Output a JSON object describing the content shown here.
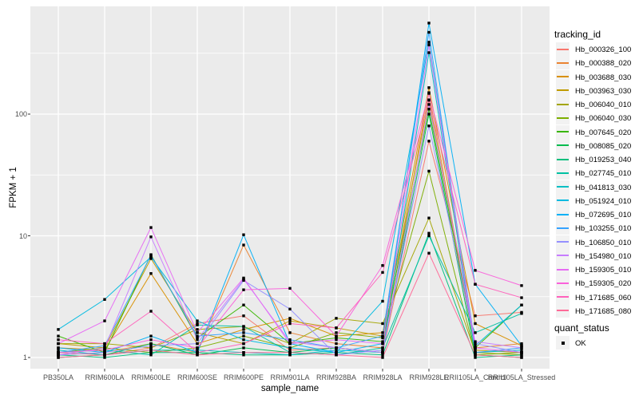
{
  "chart_data": {
    "type": "line",
    "x_scale": "categorical",
    "y_scale": "log10",
    "title": "",
    "xlabel": "sample_name",
    "ylabel": "FPKM + 1",
    "background": "#ebebeb",
    "gridline_color": "#ffffff",
    "point_marker": "black-square",
    "y_ticks": [
      {
        "value": 1,
        "label": "1"
      },
      {
        "value": 10,
        "label": "10"
      },
      {
        "value": 100,
        "label": "100"
      }
    ],
    "y_minor_gridlines": [
      3.1623,
      31.623,
      316.23
    ],
    "ylim": [
      0.85,
      770
    ],
    "categories": [
      "PB350LA",
      "RRIM600LA",
      "RRIM600LE",
      "RRIM600SE",
      "RRIM600PE",
      "RRIM901LA",
      "RRIM928BA",
      "RRIM928LA",
      "RRIM928LE",
      "RRII105LA_Control",
      "RRII105LA_Stressed"
    ],
    "series": [
      {
        "name": "Hb_000326_100",
        "color": "#F8766D",
        "values": [
          1.1,
          1.05,
          1.2,
          1.9,
          2.2,
          1.15,
          1.2,
          1.1,
          60,
          2.2,
          2.35
        ]
      },
      {
        "name": "Hb_000388_020",
        "color": "#EA8331",
        "values": [
          1.05,
          1.1,
          1.3,
          1.1,
          8.4,
          1.6,
          1.3,
          1.2,
          150,
          1.2,
          1.3
        ]
      },
      {
        "name": "Hb_003688_030",
        "color": "#D89000",
        "values": [
          1.2,
          1.15,
          4.9,
          1.3,
          1.7,
          2.1,
          1.5,
          1.6,
          165,
          1.9,
          1.25
        ]
      },
      {
        "name": "Hb_003963_030",
        "color": "#C09B00",
        "values": [
          1.3,
          1.2,
          6.5,
          1.6,
          1.3,
          2.0,
          1.75,
          1.5,
          131,
          1.15,
          1.1
        ]
      },
      {
        "name": "Hb_006040_010",
        "color": "#A3A500",
        "values": [
          1.3,
          1.3,
          1.2,
          1.7,
          1.8,
          1.3,
          2.1,
          1.9,
          14,
          1.1,
          1.05
        ]
      },
      {
        "name": "Hb_006040_030",
        "color": "#7CAE00",
        "values": [
          1.1,
          1.2,
          1.1,
          1.2,
          1.5,
          1.2,
          1.6,
          1.45,
          34,
          1.05,
          1.1
        ]
      },
      {
        "name": "Hb_007645_020",
        "color": "#39B600",
        "values": [
          1.5,
          1.1,
          7.0,
          1.45,
          2.7,
          1.3,
          1.45,
          1.35,
          110,
          1.2,
          2.7
        ]
      },
      {
        "name": "Hb_008085_020",
        "color": "#00BB4E",
        "values": [
          1.0,
          1.05,
          1.3,
          1.05,
          1.2,
          1.1,
          1.2,
          1.1,
          100,
          1.05,
          1.0
        ]
      },
      {
        "name": "Hb_019253_040",
        "color": "#00BF7D",
        "values": [
          1.05,
          1.0,
          1.1,
          1.1,
          1.05,
          1.05,
          1.1,
          1.05,
          10.5,
          1.0,
          1.05
        ]
      },
      {
        "name": "Hb_027745_010",
        "color": "#00C1A3",
        "values": [
          1.1,
          1.15,
          1.05,
          1.85,
          1.8,
          1.1,
          1.05,
          1.2,
          10,
          1.6,
          2.3
        ]
      },
      {
        "name": "Hb_041813_030",
        "color": "#00BFC4",
        "values": [
          1.15,
          1.05,
          1.15,
          1.15,
          1.1,
          1.05,
          1.15,
          1.1,
          320,
          1.1,
          1.15
        ]
      },
      {
        "name": "Hb_051924_010",
        "color": "#00BAE0",
        "values": [
          1.7,
          3.0,
          6.7,
          2.0,
          1.4,
          1.2,
          1.1,
          2.9,
          390,
          1.25,
          2.7
        ]
      },
      {
        "name": "Hb_072695_010",
        "color": "#00B0F6",
        "values": [
          1.2,
          1.1,
          1.5,
          1.1,
          10.2,
          1.3,
          1.1,
          1.3,
          560,
          4.0,
          1.25
        ]
      },
      {
        "name": "Hb_103255_010",
        "color": "#35A2FF",
        "values": [
          1.1,
          1.25,
          6.9,
          1.5,
          1.6,
          1.4,
          1.2,
          1.5,
          470,
          1.1,
          1.2
        ]
      },
      {
        "name": "Hb_106850_010",
        "color": "#9590FF",
        "values": [
          1.05,
          1.1,
          1.25,
          1.3,
          4.3,
          2.5,
          1.05,
          1.15,
          80,
          1.3,
          1.1
        ]
      },
      {
        "name": "Hb_154980_010",
        "color": "#C77CFF",
        "values": [
          1.05,
          1.2,
          9.8,
          1.4,
          4.4,
          1.35,
          1.2,
          1.1,
          120,
          1.35,
          1.2
        ]
      },
      {
        "name": "Hb_159305_010",
        "color": "#E76BF3",
        "values": [
          1.3,
          2.0,
          11.7,
          1.6,
          4.5,
          1.3,
          1.4,
          1.3,
          370,
          1.2,
          1.1
        ]
      },
      {
        "name": "Hb_159305_020",
        "color": "#FA62DB",
        "values": [
          1.1,
          1.15,
          1.4,
          1.2,
          3.6,
          3.7,
          1.5,
          5.7,
          148,
          5.2,
          3.9
        ]
      },
      {
        "name": "Hb_171685_060",
        "color": "#FF62BC",
        "values": [
          1.4,
          1.3,
          2.4,
          1.1,
          1.3,
          1.9,
          1.75,
          5.0,
          130,
          4.0,
          3.1
        ]
      },
      {
        "name": "Hb_171685_080",
        "color": "#FF6A98",
        "values": [
          1.0,
          1.05,
          1.15,
          1.05,
          1.1,
          1.1,
          1.05,
          1.0,
          7.2,
          1.05,
          1.0
        ]
      }
    ],
    "legend_position": "right",
    "legends": {
      "tracking": {
        "title": "tracking_id"
      },
      "quant": {
        "title": "quant_status",
        "items": [
          {
            "label": "OK",
            "marker": "black-square"
          }
        ]
      }
    }
  }
}
